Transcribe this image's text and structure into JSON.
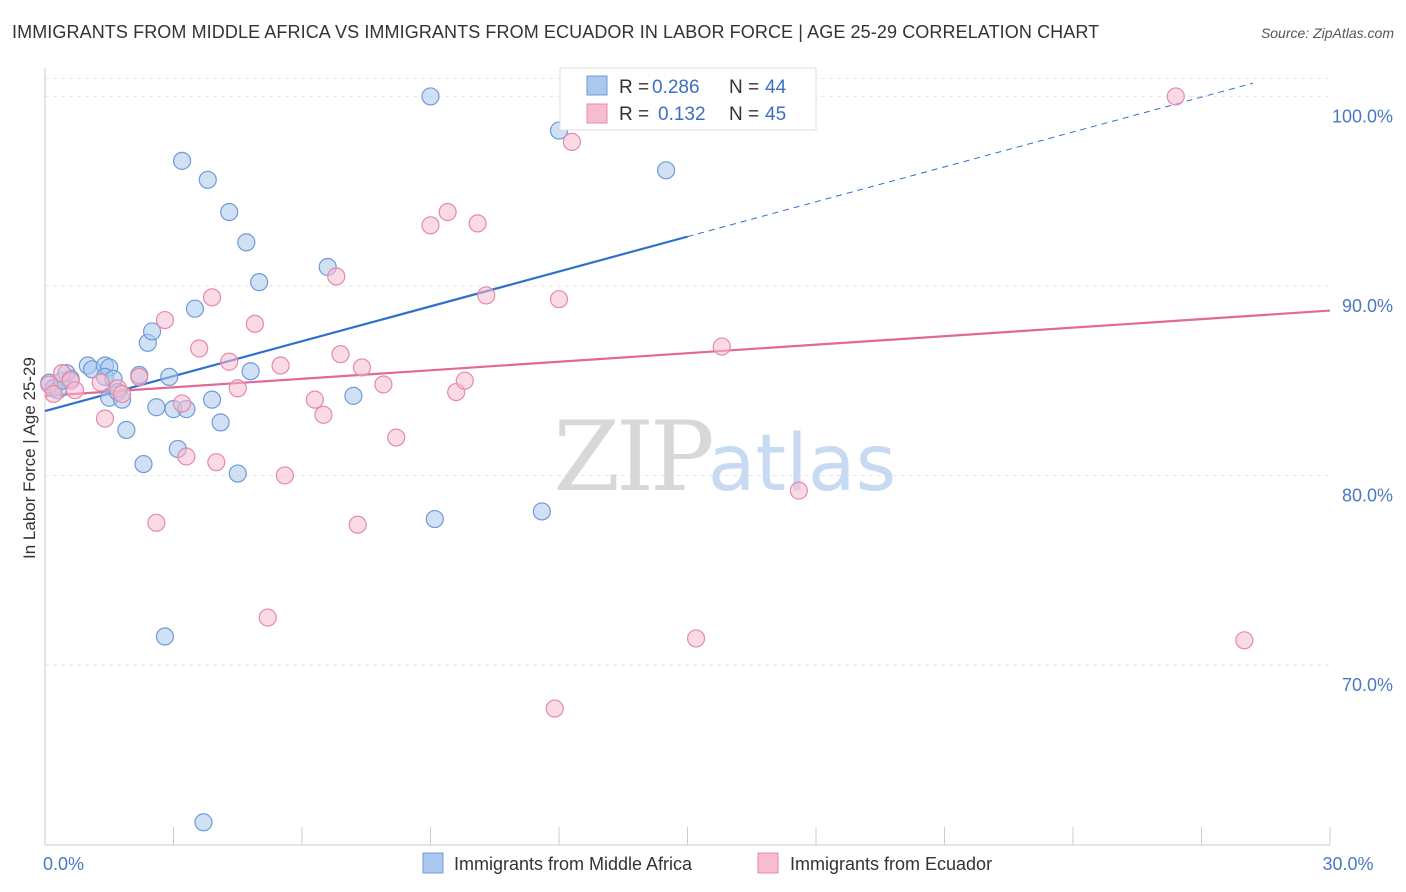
{
  "title": "IMMIGRANTS FROM MIDDLE AFRICA VS IMMIGRANTS FROM ECUADOR IN LABOR FORCE | AGE 25-29 CORRELATION CHART",
  "source": "Source: ZipAtlas.com",
  "watermark": {
    "zip": "ZIP",
    "atlas": "atlas"
  },
  "colors": {
    "blue_fill": "#aac8ee",
    "blue_stroke": "#6f9bd6",
    "blue_line": "#2f6fce",
    "pink_fill": "#f6bcd0",
    "pink_stroke": "#e58aab",
    "pink_line": "#e0689a",
    "tick_text": "#4a79c4",
    "grid": "#e2e6ee"
  },
  "chart_data": {
    "type": "scatter",
    "title": "IMMIGRANTS FROM MIDDLE AFRICA VS IMMIGRANTS FROM ECUADOR IN LABOR FORCE | AGE 25-29 CORRELATION CHART",
    "xlabel": "",
    "ylabel": "In Labor Force | Age 25-29",
    "xlim": [
      0,
      30
    ],
    "ylim": [
      60.5,
      101.5
    ],
    "x_ticks": [
      0,
      30
    ],
    "x_tick_labels": [
      "0.0%",
      "30.0%"
    ],
    "y_ticks": [
      70,
      80,
      90,
      100
    ],
    "y_tick_labels": [
      "70.0%",
      "80.0%",
      "90.0%",
      "100.0%"
    ],
    "grid": true,
    "legend_position": "top-center",
    "legend": [
      {
        "r_label": "R =",
        "r_value": "0.286",
        "n_label": "N =",
        "n_value": "44"
      },
      {
        "r_label": "R =",
        "r_value": "0.132",
        "n_label": "N =",
        "n_value": "45"
      }
    ],
    "series": [
      {
        "name": "Immigrants from Middle Africa",
        "color": "blue",
        "points": [
          [
            0.1,
            84.9
          ],
          [
            0.2,
            84.6
          ],
          [
            0.3,
            84.5
          ],
          [
            0.4,
            85.0
          ],
          [
            0.5,
            85.4
          ],
          [
            0.6,
            85.1
          ],
          [
            1.0,
            85.8
          ],
          [
            1.1,
            85.6
          ],
          [
            1.4,
            85.8
          ],
          [
            1.5,
            85.7
          ],
          [
            1.4,
            85.2
          ],
          [
            1.5,
            84.1
          ],
          [
            1.6,
            85.1
          ],
          [
            1.7,
            84.4
          ],
          [
            1.8,
            84.0
          ],
          [
            1.9,
            82.4
          ],
          [
            2.2,
            85.3
          ],
          [
            2.3,
            80.6
          ],
          [
            2.4,
            87.0
          ],
          [
            2.5,
            87.6
          ],
          [
            2.6,
            83.6
          ],
          [
            2.9,
            85.2
          ],
          [
            3.0,
            83.5
          ],
          [
            3.1,
            81.4
          ],
          [
            3.2,
            96.6
          ],
          [
            3.3,
            83.5
          ],
          [
            3.5,
            88.8
          ],
          [
            3.8,
            95.6
          ],
          [
            3.7,
            61.7
          ],
          [
            3.9,
            84.0
          ],
          [
            4.1,
            82.8
          ],
          [
            4.3,
            93.9
          ],
          [
            4.5,
            80.1
          ],
          [
            4.7,
            92.3
          ],
          [
            4.8,
            85.5
          ],
          [
            5.0,
            90.2
          ],
          [
            6.6,
            91.0
          ],
          [
            7.2,
            84.2
          ],
          [
            9.0,
            100.0
          ],
          [
            9.1,
            77.7
          ],
          [
            11.6,
            78.1
          ],
          [
            12.0,
            98.2
          ],
          [
            14.5,
            96.1
          ],
          [
            2.8,
            71.5
          ]
        ]
      },
      {
        "name": "Immigrants from Ecuador",
        "color": "pink",
        "points": [
          [
            0.1,
            84.8
          ],
          [
            0.2,
            84.3
          ],
          [
            0.4,
            85.4
          ],
          [
            0.6,
            85.0
          ],
          [
            0.7,
            84.5
          ],
          [
            1.3,
            84.9
          ],
          [
            1.4,
            83.0
          ],
          [
            1.7,
            84.6
          ],
          [
            1.8,
            84.3
          ],
          [
            2.2,
            85.2
          ],
          [
            2.6,
            77.5
          ],
          [
            2.8,
            88.2
          ],
          [
            3.2,
            83.8
          ],
          [
            3.3,
            81.0
          ],
          [
            3.6,
            86.7
          ],
          [
            3.9,
            89.4
          ],
          [
            4.0,
            80.7
          ],
          [
            4.3,
            86.0
          ],
          [
            4.5,
            84.6
          ],
          [
            4.9,
            88.0
          ],
          [
            5.2,
            72.5
          ],
          [
            5.5,
            85.8
          ],
          [
            5.6,
            80.0
          ],
          [
            6.3,
            84.0
          ],
          [
            6.5,
            83.2
          ],
          [
            6.8,
            90.5
          ],
          [
            6.9,
            86.4
          ],
          [
            7.3,
            77.4
          ],
          [
            7.4,
            85.7
          ],
          [
            7.9,
            84.8
          ],
          [
            8.2,
            82.0
          ],
          [
            9.0,
            93.2
          ],
          [
            9.4,
            93.9
          ],
          [
            9.6,
            84.4
          ],
          [
            9.8,
            85.0
          ],
          [
            10.1,
            93.3
          ],
          [
            10.3,
            89.5
          ],
          [
            11.9,
            67.7
          ],
          [
            12.0,
            89.3
          ],
          [
            12.3,
            97.6
          ],
          [
            15.2,
            71.4
          ],
          [
            15.8,
            86.8
          ],
          [
            17.6,
            79.2
          ],
          [
            26.4,
            100.0
          ],
          [
            28.0,
            71.3
          ]
        ]
      }
    ],
    "trend_lines": [
      {
        "series": "Immigrants from Middle Africa",
        "x_start": 0,
        "y_start": 83.4,
        "x_solid_end": 15,
        "x_end": 28.2,
        "y_end": 100.7
      },
      {
        "series": "Immigrants from Ecuador",
        "x_start": 0,
        "y_start": 84.2,
        "x_end": 30,
        "y_end": 88.7
      }
    ]
  }
}
